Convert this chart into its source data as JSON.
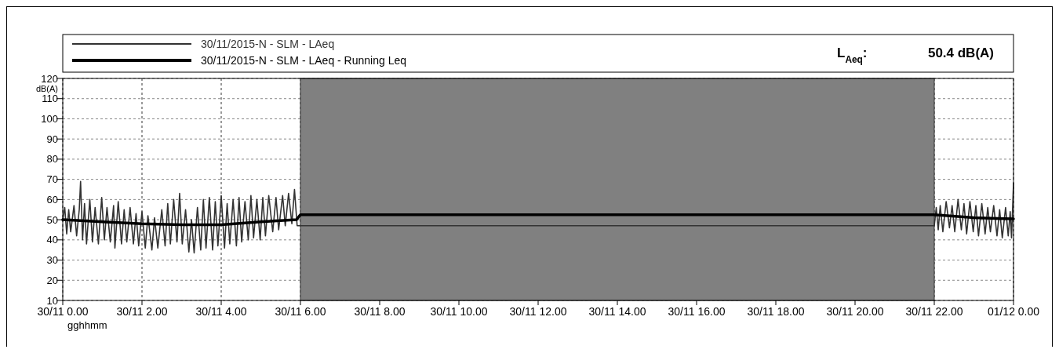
{
  "chart_data": {
    "type": "line",
    "xlabel": "gghhmm",
    "ylabel": "dB(A)",
    "annotations": [
      "L$_{Aeq}$:",
      "50.4  dB(A)"
    ],
    "xlim": [
      "2015-11-30T00:00",
      "2015-12-01T00:00"
    ],
    "xticks": [
      {
        "value": "2015-11-30T00:00",
        "label": "30/11 0.00"
      },
      {
        "value": "2015-11-30T02:00",
        "label": "30/11 2.00"
      },
      {
        "value": "2015-11-30T04:00",
        "label": "30/11 4.00"
      },
      {
        "value": "2015-11-30T06:00",
        "label": "30/11 6.00"
      },
      {
        "value": "2015-11-30T08:00",
        "label": "30/11 8.00"
      },
      {
        "value": "2015-11-30T10:00",
        "label": "30/11 10.00"
      },
      {
        "value": "2015-11-30T12:00",
        "label": "30/11 12.00"
      },
      {
        "value": "2015-11-30T14:00",
        "label": "30/11 14.00"
      },
      {
        "value": "2015-11-30T16:00",
        "label": "30/11 16.00"
      },
      {
        "value": "2015-11-30T18:00",
        "label": "30/11 18.00"
      },
      {
        "value": "2015-11-30T20:00",
        "label": "30/11 20.00"
      },
      {
        "value": "2015-11-30T22:00",
        "label": "30/11 22.00"
      },
      {
        "value": "2015-12-01T00:00",
        "label": "01/12 0.00"
      }
    ],
    "ylim": [
      10,
      120
    ],
    "yticks": [
      10,
      20,
      30,
      40,
      50,
      60,
      70,
      80,
      90,
      100,
      110,
      120
    ],
    "grid": true,
    "legend": "top",
    "line_style": "solid",
    "marker": "none",
    "bands": [
      {
        "axis": "x",
        "from": "2015-11-30T06:00",
        "to": "2015-11-30T22:00",
        "color": "#808080"
      }
    ],
    "series": [
      {
        "name": "30/11/2015-N - SLM - LAeq",
        "color": "#333333",
        "x": [
          "2015-11-30T00:00",
          "2015-11-30T00:03",
          "2015-11-30T00:06",
          "2015-11-30T00:09",
          "2015-11-30T00:12",
          "2015-11-30T00:17",
          "2015-11-30T00:21",
          "2015-11-30T00:25",
          "2015-11-30T00:27",
          "2015-11-30T00:30",
          "2015-11-30T00:33",
          "2015-11-30T00:36",
          "2015-11-30T00:41",
          "2015-11-30T00:45",
          "2015-11-30T00:49",
          "2015-11-30T00:54",
          "2015-11-30T00:59",
          "2015-11-30T01:03",
          "2015-11-30T01:07",
          "2015-11-30T01:12",
          "2015-11-30T01:17",
          "2015-11-30T01:19",
          "2015-11-30T01:24",
          "2015-11-30T01:29",
          "2015-11-30T01:33",
          "2015-11-30T01:37",
          "2015-11-30T01:42",
          "2015-11-30T01:47",
          "2015-11-30T01:51",
          "2015-11-30T01:55",
          "2015-11-30T02:00",
          "2015-11-30T02:05",
          "2015-11-30T02:09",
          "2015-11-30T02:15",
          "2015-11-30T02:19",
          "2015-11-30T02:24",
          "2015-11-30T02:30",
          "2015-11-30T02:35",
          "2015-11-30T02:39",
          "2015-11-30T02:43",
          "2015-11-30T02:48",
          "2015-11-30T02:53",
          "2015-11-30T02:57",
          "2015-11-30T03:01",
          "2015-11-30T03:06",
          "2015-11-30T03:11",
          "2015-11-30T03:15",
          "2015-11-30T03:19",
          "2015-11-30T03:24",
          "2015-11-30T03:29",
          "2015-11-30T03:33",
          "2015-11-30T03:37",
          "2015-11-30T03:42",
          "2015-11-30T03:47",
          "2015-11-30T03:51",
          "2015-11-30T03:55",
          "2015-11-30T04:00",
          "2015-11-30T04:05",
          "2015-11-30T04:09",
          "2015-11-30T04:13",
          "2015-11-30T04:18",
          "2015-11-30T04:23",
          "2015-11-30T04:27",
          "2015-11-30T04:31",
          "2015-11-30T04:36",
          "2015-11-30T04:41",
          "2015-11-30T04:45",
          "2015-11-30T04:49",
          "2015-11-30T04:54",
          "2015-11-30T04:59",
          "2015-11-30T05:03",
          "2015-11-30T05:07",
          "2015-11-30T05:12",
          "2015-11-30T05:18",
          "2015-11-30T05:23",
          "2015-11-30T05:27",
          "2015-11-30T05:33",
          "2015-11-30T05:37",
          "2015-11-30T05:42",
          "2015-11-30T05:47",
          "2015-11-30T05:51",
          "2015-11-30T05:55",
          "2015-11-30T06:00",
          "2015-11-30T22:00",
          "2015-11-30T22:03",
          "2015-11-30T22:06",
          "2015-11-30T22:09",
          "2015-11-30T22:13",
          "2015-11-30T22:18",
          "2015-11-30T22:23",
          "2015-11-30T22:27",
          "2015-11-30T22:31",
          "2015-11-30T22:36",
          "2015-11-30T22:41",
          "2015-11-30T22:45",
          "2015-11-30T22:49",
          "2015-11-30T22:54",
          "2015-11-30T22:59",
          "2015-11-30T23:03",
          "2015-11-30T23:07",
          "2015-11-30T23:12",
          "2015-11-30T23:17",
          "2015-11-30T23:21",
          "2015-11-30T23:25",
          "2015-11-30T23:30",
          "2015-11-30T23:35",
          "2015-11-30T23:39",
          "2015-11-30T23:43",
          "2015-11-30T23:48",
          "2015-11-30T23:52",
          "2015-11-30T23:55",
          "2015-11-30T23:57",
          "2015-12-01T00:00"
        ],
        "values": [
          50,
          56,
          43,
          55,
          44,
          57,
          42,
          55,
          69,
          40,
          58,
          38,
          60,
          39,
          56,
          38,
          61,
          40,
          56,
          39,
          57,
          36,
          59,
          38,
          55,
          39,
          56,
          38,
          53,
          37,
          54,
          36,
          52,
          35,
          51,
          36,
          55,
          37,
          58,
          38,
          60,
          39,
          63,
          38,
          55,
          34,
          50,
          33.5,
          56,
          35,
          60,
          36,
          61,
          35,
          59,
          37,
          62,
          36,
          58,
          38,
          60,
          37,
          61,
          39,
          59,
          40,
          62,
          41,
          60,
          40,
          61,
          42,
          62,
          44,
          61,
          45,
          62,
          47,
          63,
          48,
          65,
          47,
          47,
          47,
          56,
          45,
          57,
          44,
          59,
          46,
          57,
          44,
          60,
          45,
          58,
          43,
          59,
          44,
          57,
          42,
          58,
          43,
          56,
          44,
          57,
          42,
          55,
          41,
          56,
          42,
          54,
          41,
          68
        ]
      },
      {
        "name": "30/11/2015-N - SLM - LAeq - Running Leq",
        "color": "#000000",
        "x": [
          "2015-11-30T00:00",
          "2015-11-30T01:00",
          "2015-11-30T02:00",
          "2015-11-30T03:00",
          "2015-11-30T04:00",
          "2015-11-30T05:00",
          "2015-11-30T05:54",
          "2015-11-30T06:00",
          "2015-11-30T22:00",
          "2015-11-30T23:00",
          "2015-12-01T00:00"
        ],
        "values": [
          50,
          49,
          48,
          47.5,
          47.5,
          49,
          50,
          52.5,
          52.5,
          51,
          50.4
        ]
      }
    ]
  }
}
